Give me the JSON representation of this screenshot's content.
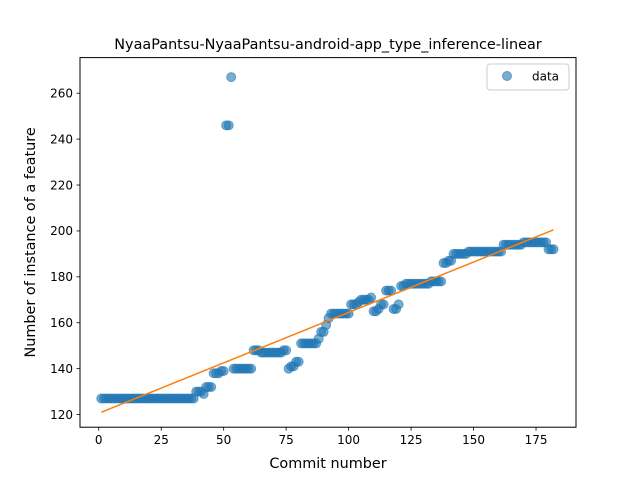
{
  "chart_data": {
    "type": "scatter",
    "title": "NyaaPantsu-NyaaPantsu-android-app_type_inference-linear",
    "xlabel": "Commit number",
    "ylabel": "Number of instance of a feature",
    "xlim": [
      -7.5,
      191
    ],
    "ylim": [
      114.5,
      275.5
    ],
    "xticks": [
      0,
      25,
      50,
      75,
      100,
      125,
      150,
      175
    ],
    "yticks": [
      120,
      140,
      160,
      180,
      200,
      220,
      240,
      260
    ],
    "xtick_labels": [
      "0",
      "25",
      "50",
      "75",
      "100",
      "125",
      "150",
      "175"
    ],
    "ytick_labels": [
      "120",
      "140",
      "160",
      "180",
      "200",
      "220",
      "240",
      "260"
    ],
    "legend": {
      "placement": "top-right",
      "label": "data"
    },
    "colors": {
      "points": "#1f77b4",
      "fit": "#ff7f0e"
    },
    "series": [
      {
        "name": "data",
        "kind": "scatter",
        "points": [
          [
            1,
            127
          ],
          [
            2,
            127
          ],
          [
            3,
            127
          ],
          [
            4,
            127
          ],
          [
            5,
            127
          ],
          [
            6,
            127
          ],
          [
            7,
            127
          ],
          [
            8,
            127
          ],
          [
            9,
            127
          ],
          [
            10,
            127
          ],
          [
            11,
            127
          ],
          [
            12,
            127
          ],
          [
            13,
            127
          ],
          [
            14,
            127
          ],
          [
            15,
            127
          ],
          [
            16,
            127
          ],
          [
            17,
            127
          ],
          [
            18,
            127
          ],
          [
            19,
            127
          ],
          [
            20,
            127
          ],
          [
            21,
            127
          ],
          [
            22,
            127
          ],
          [
            23,
            127
          ],
          [
            24,
            127
          ],
          [
            25,
            127
          ],
          [
            26,
            127
          ],
          [
            27,
            127
          ],
          [
            28,
            127
          ],
          [
            29,
            127
          ],
          [
            30,
            127
          ],
          [
            31,
            127
          ],
          [
            32,
            127
          ],
          [
            33,
            127
          ],
          [
            34,
            127
          ],
          [
            35,
            127
          ],
          [
            36,
            127
          ],
          [
            37,
            127
          ],
          [
            38,
            127
          ],
          [
            39,
            130
          ],
          [
            40,
            130
          ],
          [
            41,
            130
          ],
          [
            42,
            129
          ],
          [
            43,
            132
          ],
          [
            44,
            132
          ],
          [
            45,
            132
          ],
          [
            46,
            138
          ],
          [
            47,
            138
          ],
          [
            48,
            138
          ],
          [
            49,
            139
          ],
          [
            50,
            139
          ],
          [
            51,
            246
          ],
          [
            52,
            246
          ],
          [
            53,
            267
          ],
          [
            54,
            140
          ],
          [
            55,
            140
          ],
          [
            56,
            140
          ],
          [
            57,
            140
          ],
          [
            58,
            140
          ],
          [
            59,
            140
          ],
          [
            60,
            140
          ],
          [
            61,
            140
          ],
          [
            62,
            148
          ],
          [
            63,
            148
          ],
          [
            64,
            148
          ],
          [
            65,
            147
          ],
          [
            66,
            147
          ],
          [
            67,
            147
          ],
          [
            68,
            147
          ],
          [
            69,
            147
          ],
          [
            70,
            147
          ],
          [
            71,
            147
          ],
          [
            72,
            147
          ],
          [
            73,
            147
          ],
          [
            74,
            148
          ],
          [
            75,
            148
          ],
          [
            76,
            140
          ],
          [
            77,
            141
          ],
          [
            78,
            141
          ],
          [
            79,
            143
          ],
          [
            80,
            143
          ],
          [
            81,
            151
          ],
          [
            82,
            151
          ],
          [
            83,
            151
          ],
          [
            84,
            151
          ],
          [
            85,
            151
          ],
          [
            86,
            151
          ],
          [
            87,
            151
          ],
          [
            88,
            153
          ],
          [
            89,
            156
          ],
          [
            90,
            156
          ],
          [
            91,
            159
          ],
          [
            92,
            162
          ],
          [
            93,
            164
          ],
          [
            94,
            164
          ],
          [
            95,
            164
          ],
          [
            96,
            164
          ],
          [
            97,
            164
          ],
          [
            98,
            164
          ],
          [
            99,
            164
          ],
          [
            100,
            164
          ],
          [
            101,
            168
          ],
          [
            102,
            168
          ],
          [
            103,
            168
          ],
          [
            104,
            169
          ],
          [
            105,
            170
          ],
          [
            106,
            170
          ],
          [
            107,
            170
          ],
          [
            108,
            170
          ],
          [
            109,
            171
          ],
          [
            110,
            165
          ],
          [
            111,
            165
          ],
          [
            112,
            166
          ],
          [
            113,
            168
          ],
          [
            114,
            168
          ],
          [
            115,
            174
          ],
          [
            116,
            174
          ],
          [
            117,
            174
          ],
          [
            118,
            166
          ],
          [
            119,
            166
          ],
          [
            120,
            168
          ],
          [
            121,
            176
          ],
          [
            122,
            176
          ],
          [
            123,
            177
          ],
          [
            124,
            177
          ],
          [
            125,
            177
          ],
          [
            126,
            177
          ],
          [
            127,
            177
          ],
          [
            128,
            177
          ],
          [
            129,
            177
          ],
          [
            130,
            177
          ],
          [
            131,
            177
          ],
          [
            132,
            177
          ],
          [
            133,
            178
          ],
          [
            134,
            178
          ],
          [
            135,
            178
          ],
          [
            136,
            178
          ],
          [
            137,
            178
          ],
          [
            138,
            186
          ],
          [
            139,
            186
          ],
          [
            140,
            187
          ],
          [
            141,
            187
          ],
          [
            142,
            190
          ],
          [
            143,
            190
          ],
          [
            144,
            190
          ],
          [
            145,
            190
          ],
          [
            146,
            190
          ],
          [
            147,
            190
          ],
          [
            148,
            191
          ],
          [
            149,
            191
          ],
          [
            150,
            191
          ],
          [
            151,
            191
          ],
          [
            152,
            191
          ],
          [
            153,
            191
          ],
          [
            154,
            191
          ],
          [
            155,
            191
          ],
          [
            156,
            191
          ],
          [
            157,
            191
          ],
          [
            158,
            191
          ],
          [
            159,
            191
          ],
          [
            160,
            191
          ],
          [
            161,
            191
          ],
          [
            162,
            194
          ],
          [
            163,
            194
          ],
          [
            164,
            194
          ],
          [
            165,
            194
          ],
          [
            166,
            194
          ],
          [
            167,
            194
          ],
          [
            168,
            194
          ],
          [
            169,
            194
          ],
          [
            170,
            195
          ],
          [
            171,
            195
          ],
          [
            172,
            195
          ],
          [
            173,
            195
          ],
          [
            174,
            195
          ],
          [
            175,
            195
          ],
          [
            176,
            195
          ],
          [
            177,
            195
          ],
          [
            178,
            195
          ],
          [
            179,
            195
          ],
          [
            180,
            192
          ],
          [
            181,
            192
          ],
          [
            182,
            192
          ]
        ]
      },
      {
        "name": "",
        "kind": "line",
        "points": [
          [
            1,
            121
          ],
          [
            182,
            200.5
          ]
        ]
      }
    ]
  }
}
